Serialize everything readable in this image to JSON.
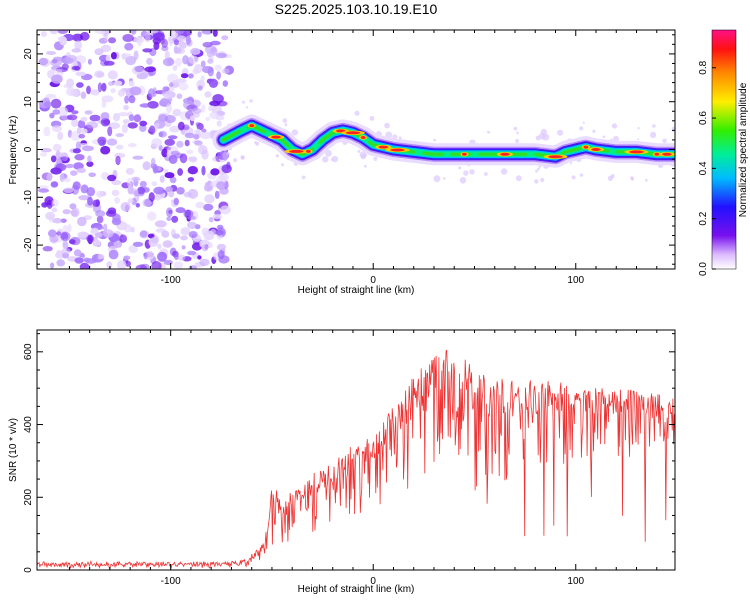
{
  "page_title": "S225.2025.103.10.19.E10",
  "colors": {
    "signal_line": "#ee3333",
    "noise_purple": "#8844ee",
    "axis": "#000000"
  },
  "chart_data": [
    {
      "id": "spectrogram",
      "type": "heatmap",
      "title": "S225.2025.103.10.19.E10",
      "xlabel": "Height of straight line (km)",
      "ylabel": "Frequency (Hz)",
      "xlim": [
        -166,
        149
      ],
      "ylim": [
        -25,
        25
      ],
      "xticks": [
        -100,
        0,
        100
      ],
      "yticks": [
        -20,
        -10,
        0,
        10,
        20
      ],
      "noise_region_x": [
        -166,
        -74
      ],
      "ridge": {
        "name": "Frequency ridge",
        "x": [
          -74,
          -65,
          -60,
          -55,
          -50,
          -45,
          -40,
          -35,
          -30,
          -25,
          -20,
          -15,
          -10,
          -5,
          0,
          5,
          10,
          20,
          30,
          40,
          50,
          60,
          70,
          80,
          90,
          95,
          100,
          105,
          110,
          120,
          130,
          140,
          149
        ],
        "y": [
          2,
          4,
          5,
          4,
          3,
          2,
          0,
          -1,
          0,
          2,
          3.5,
          4,
          3.5,
          2.5,
          1,
          0.5,
          0,
          -0.5,
          -1,
          -1,
          -1,
          -1,
          -1,
          -1,
          -1.5,
          -0.5,
          0,
          0.5,
          0,
          -0.5,
          -0.5,
          -1,
          -1
        ]
      },
      "colorbar": {
        "label": "Normalized spectral amplitude",
        "range": [
          0,
          0.95
        ],
        "ticks": [
          0,
          0.2,
          0.4,
          0.6,
          0.8
        ],
        "tick_labels": [
          "0.0",
          "0.2",
          "0.4",
          "0.6",
          "0.8"
        ],
        "colormap": "rainbow"
      }
    },
    {
      "id": "snr",
      "type": "line",
      "xlabel": "Height of straight line (km)",
      "ylabel": "SNR (10 * v/v)",
      "xlim": [
        -166,
        149
      ],
      "ylim": [
        0,
        660
      ],
      "xticks": [
        -100,
        0,
        100
      ],
      "yticks": [
        0,
        200,
        400,
        600
      ],
      "series": [
        {
          "name": "SNR",
          "x": [
            -166,
            -150,
            -120,
            -90,
            -70,
            -65,
            -60,
            -55,
            -52,
            -50,
            -45,
            -40,
            -30,
            -20,
            -10,
            0,
            10,
            20,
            30,
            40,
            45,
            50,
            60,
            70,
            80,
            90,
            100,
            110,
            120,
            130,
            140,
            149
          ],
          "y": [
            18,
            18,
            18,
            18,
            20,
            25,
            40,
            70,
            120,
            250,
            180,
            220,
            260,
            300,
            340,
            380,
            460,
            530,
            590,
            615,
            600,
            550,
            530,
            525,
            520,
            515,
            510,
            505,
            500,
            495,
            490,
            485
          ]
        }
      ],
      "snr_spread_low": {
        "x": [
          -166,
          -60,
          -50,
          -40,
          -20,
          0,
          20,
          40,
          50,
          70,
          100,
          149
        ],
        "y": [
          8,
          10,
          40,
          80,
          120,
          160,
          220,
          350,
          200,
          250,
          290,
          320
        ]
      }
    }
  ]
}
